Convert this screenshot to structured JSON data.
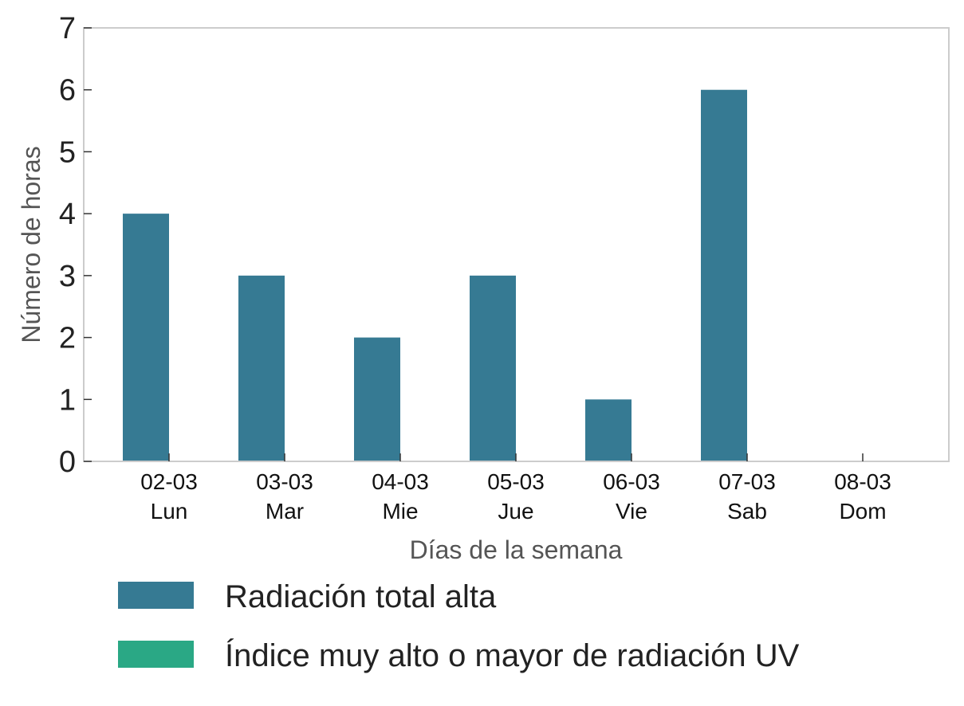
{
  "chart_data": {
    "type": "bar",
    "categories": [
      {
        "date": "02-03",
        "day": "Lun"
      },
      {
        "date": "03-03",
        "day": "Mar"
      },
      {
        "date": "04-03",
        "day": "Mie"
      },
      {
        "date": "05-03",
        "day": "Jue"
      },
      {
        "date": "06-03",
        "day": "Vie"
      },
      {
        "date": "07-03",
        "day": "Sab"
      },
      {
        "date": "08-03",
        "day": "Dom"
      }
    ],
    "series": [
      {
        "name": "Radiación total alta",
        "color": "#367a93",
        "values": [
          4,
          3,
          2,
          3,
          1,
          6,
          0
        ]
      },
      {
        "name": "Índice muy alto o mayor de radiación UV",
        "color": "#2aa885",
        "values": [
          0,
          0,
          0,
          0,
          0,
          0,
          0
        ]
      }
    ],
    "xlabel": "Días de la semana",
    "ylabel": "Número de horas",
    "ylim": [
      0,
      7
    ],
    "yticks": [
      0,
      1,
      2,
      3,
      4,
      5,
      6,
      7
    ],
    "grid": false,
    "legend_position": "bottom"
  }
}
